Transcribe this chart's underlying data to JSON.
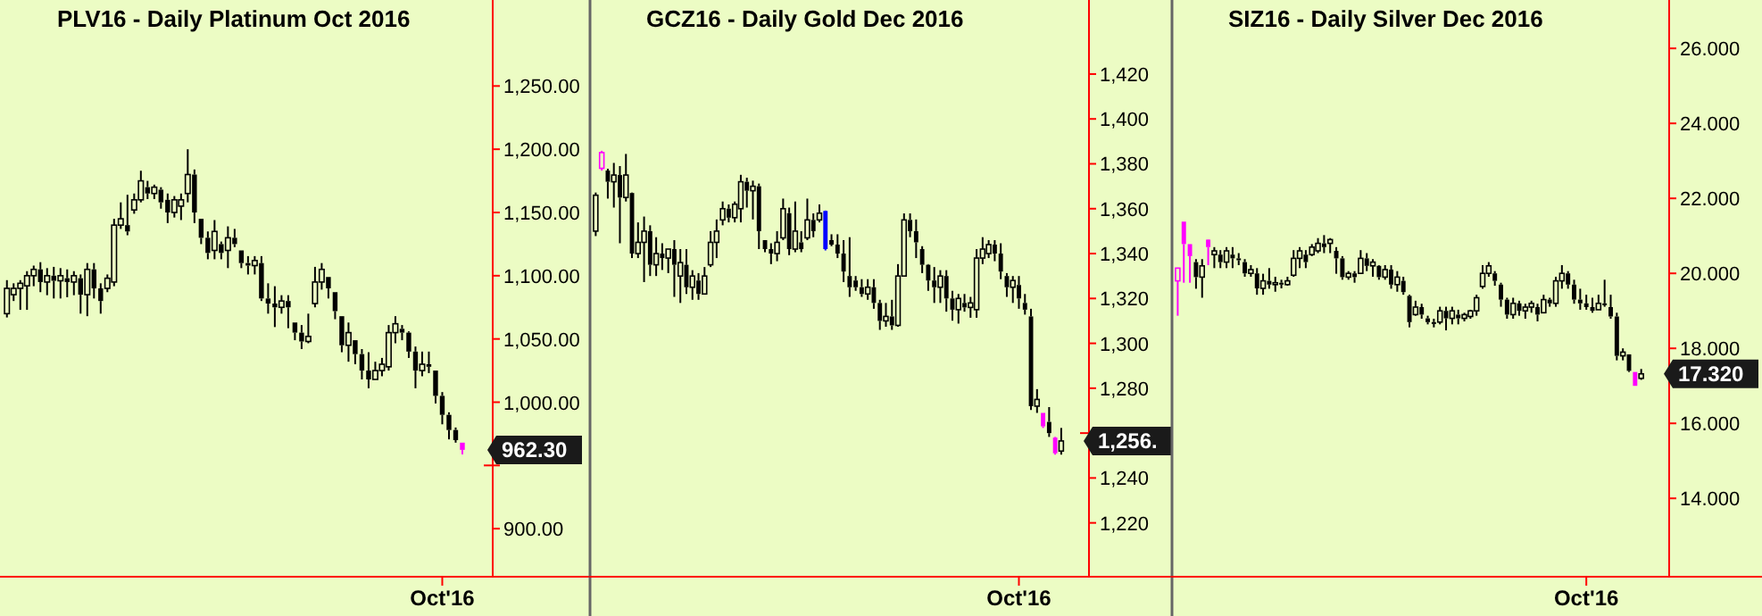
{
  "chart_data": [
    {
      "type": "candlestick",
      "title": "PLV16 - Daily  Platinum Oct 2016",
      "color": "#000000",
      "ylim": [
        862,
        1318
      ],
      "yticks": [
        {
          "value": 900,
          "label": "900.00"
        },
        {
          "value": 950,
          "label": null
        },
        {
          "value": 1000,
          "label": "1,000.00"
        },
        {
          "value": 1050,
          "label": "1,050.00"
        },
        {
          "value": 1100,
          "label": "1,100.00"
        },
        {
          "value": 1150,
          "label": "1,150.00"
        },
        {
          "value": 1200,
          "label": "1,200.00"
        },
        {
          "value": 1250,
          "label": "1,250.00"
        }
      ],
      "categories": [
        null,
        null,
        null,
        null,
        null,
        null,
        null,
        null,
        null,
        null,
        null,
        null,
        null,
        null,
        null,
        null,
        null,
        null,
        null,
        null,
        null,
        null,
        null,
        null,
        null,
        null,
        null,
        null,
        null,
        null,
        null,
        null,
        null,
        null,
        null,
        null,
        null,
        null,
        null,
        null,
        null,
        null,
        null,
        null,
        null,
        null,
        null,
        null,
        null,
        null,
        null,
        null,
        null,
        null,
        null,
        null,
        null,
        null,
        null,
        null,
        null,
        null,
        null,
        null,
        null,
        "Oct'16",
        null,
        null,
        null
      ],
      "ohlc": [
        [
          1070,
          1096.5,
          1067,
          1090
        ],
        [
          1085,
          1094,
          1080,
          1090
        ],
        [
          1090,
          1096.5,
          1073,
          1094
        ],
        [
          1092,
          1103.6,
          1073,
          1100
        ],
        [
          1100,
          1108,
          1091.7,
          1105
        ],
        [
          1105,
          1110.7,
          1087,
          1095
        ],
        [
          1095,
          1106,
          1084.6,
          1100
        ],
        [
          1100,
          1107,
          1082,
          1096
        ],
        [
          1096,
          1106,
          1082,
          1100
        ],
        [
          1098,
          1105,
          1083,
          1095
        ],
        [
          1095,
          1103.6,
          1084.6,
          1100
        ],
        [
          1098,
          1101,
          1070,
          1085
        ],
        [
          1085,
          1110,
          1068,
          1105
        ],
        [
          1105,
          1110,
          1082,
          1090
        ],
        [
          1090,
          1094,
          1070,
          1080
        ],
        [
          1090,
          1101,
          1087,
          1098
        ],
        [
          1095,
          1145,
          1091.7,
          1140
        ],
        [
          1140,
          1158,
          1137,
          1145
        ],
        [
          1140,
          1164,
          1132,
          1135
        ],
        [
          1152,
          1165,
          1149,
          1160
        ],
        [
          1160,
          1183,
          1158,
          1175
        ],
        [
          1170,
          1175,
          1160.6,
          1165
        ],
        [
          1165,
          1172,
          1160.6,
          1170
        ],
        [
          1168,
          1170,
          1153,
          1158
        ],
        [
          1160,
          1165,
          1141.6,
          1150
        ],
        [
          1150,
          1163,
          1146,
          1160
        ],
        [
          1155,
          1165,
          1144,
          1160
        ],
        [
          1165,
          1200,
          1158,
          1180
        ],
        [
          1180,
          1184,
          1141.6,
          1150
        ],
        [
          1145,
          1145,
          1125,
          1130
        ],
        [
          1130,
          1135,
          1113,
          1118
        ],
        [
          1120,
          1144,
          1113,
          1135
        ],
        [
          1125,
          1127,
          1113,
          1118
        ],
        [
          1120,
          1139,
          1106,
          1130
        ],
        [
          1130,
          1137,
          1122.6,
          1125
        ],
        [
          1120,
          1120,
          1106,
          1110
        ],
        [
          1110,
          1115.5,
          1101,
          1108
        ],
        [
          1108,
          1115.5,
          1101,
          1112
        ],
        [
          1110,
          1115.5,
          1080,
          1082
        ],
        [
          1082,
          1094,
          1070,
          1078
        ],
        [
          1078,
          1091.7,
          1059.4,
          1075
        ],
        [
          1075,
          1084.6,
          1070,
          1080
        ],
        [
          1080,
          1084.6,
          1058.5,
          1075
        ],
        [
          1063,
          1063,
          1049,
          1055
        ],
        [
          1055,
          1061,
          1042,
          1048
        ],
        [
          1048,
          1070,
          1046.6,
          1052
        ],
        [
          1078,
          1107,
          1075,
          1095
        ],
        [
          1095,
          1110,
          1089,
          1105
        ],
        [
          1099,
          1099,
          1082,
          1090
        ],
        [
          1087,
          1087,
          1065.6,
          1072
        ],
        [
          1068,
          1068,
          1039.5,
          1045
        ],
        [
          1045,
          1063,
          1032,
          1055
        ],
        [
          1049,
          1049,
          1030,
          1038
        ],
        [
          1038,
          1042,
          1018,
          1025
        ],
        [
          1025,
          1039.5,
          1011,
          1018
        ],
        [
          1018,
          1032,
          1018,
          1025
        ],
        [
          1025,
          1035,
          1020.5,
          1030
        ],
        [
          1028,
          1061,
          1025,
          1055
        ],
        [
          1055,
          1068,
          1046.6,
          1062
        ],
        [
          1058,
          1061,
          1049,
          1055
        ],
        [
          1055,
          1056,
          1035,
          1040
        ],
        [
          1040,
          1044,
          1011,
          1025
        ],
        [
          1025,
          1040,
          1020.5,
          1030
        ],
        [
          1030,
          1040,
          1023,
          1028
        ],
        [
          1025,
          1025,
          999,
          1005
        ],
        [
          1005,
          1008,
          982.5,
          990
        ],
        [
          990,
          992,
          970.6,
          978
        ],
        [
          978,
          980,
          968,
          970
        ],
        [
          968,
          968,
          958.7,
          962.3
        ]
      ],
      "colors": [
        "#000000",
        "#000000",
        "#000000",
        "#000000",
        "#000000",
        "#000000",
        "#000000",
        "#000000",
        "#000000",
        "#000000",
        "#000000",
        "#000000",
        "#000000",
        "#000000",
        "#000000",
        "#000000",
        "#000000",
        "#000000",
        "#000000",
        "#000000",
        "#000000",
        "#000000",
        "#000000",
        "#000000",
        "#000000",
        "#000000",
        "#000000",
        "#000000",
        "#000000",
        "#000000",
        "#000000",
        "#000000",
        "#000000",
        "#000000",
        "#000000",
        "#000000",
        "#000000",
        "#000000",
        "#000000",
        "#000000",
        "#000000",
        "#000000",
        "#000000",
        "#000000",
        "#000000",
        "#000000",
        "#000000",
        "#000000",
        "#000000",
        "#000000",
        "#000000",
        "#000000",
        "#000000",
        "#000000",
        "#000000",
        "#000000",
        "#000000",
        "#000000",
        "#000000",
        "#000000",
        "#000000",
        "#000000",
        "#000000",
        "#000000",
        "#000000",
        "#000000",
        "#000000",
        "#000000",
        "#ff00ff"
      ],
      "annotations": [
        "962.30"
      ]
    },
    {
      "type": "candlestick",
      "title": "GCZ16 - Daily  Gold Dec 2016",
      "color": "#000000",
      "ylim": [
        1196,
        1453
      ],
      "yticks": [
        {
          "value": 1220,
          "label": "1,220"
        },
        {
          "value": 1240,
          "label": "1,240"
        },
        {
          "value": 1260,
          "label": null
        },
        {
          "value": 1280,
          "label": "1,280"
        },
        {
          "value": 1300,
          "label": "1,300"
        },
        {
          "value": 1320,
          "label": "1,320"
        },
        {
          "value": 1340,
          "label": "1,340"
        },
        {
          "value": 1360,
          "label": "1,360"
        },
        {
          "value": 1380,
          "label": "1,380"
        },
        {
          "value": 1400,
          "label": "1,400"
        },
        {
          "value": 1420,
          "label": "1,420"
        }
      ],
      "categories": [
        null,
        null,
        null,
        null,
        null,
        null,
        null,
        null,
        null,
        null,
        null,
        null,
        null,
        null,
        null,
        null,
        null,
        null,
        null,
        null,
        null,
        null,
        null,
        null,
        null,
        null,
        null,
        null,
        null,
        null,
        null,
        null,
        null,
        null,
        null,
        null,
        null,
        null,
        null,
        null,
        null,
        null,
        null,
        null,
        null,
        null,
        null,
        null,
        null,
        null,
        null,
        null,
        null,
        null,
        null,
        null,
        null,
        null,
        null,
        null,
        null,
        null,
        null,
        null,
        null,
        null,
        null,
        null,
        null,
        null,
        "Oct'16",
        null,
        null,
        null,
        null,
        null,
        null,
        null
      ],
      "ohlc": [
        [
          1350,
          1367.2,
          1347.8,
          1366
        ],
        [
          1378,
          1385.8,
          1377,
          1385
        ],
        [
          1377,
          1377.8,
          1364.5,
          1372
        ],
        [
          1372,
          1380.4,
          1360.5,
          1375
        ],
        [
          1375,
          1379,
          1344.6,
          1365
        ],
        [
          1365,
          1384.4,
          1363.2,
          1375
        ],
        [
          1367,
          1367.2,
          1338,
          1340
        ],
        [
          1340,
          1353.9,
          1338,
          1345
        ],
        [
          1345,
          1356.5,
          1327.3,
          1350
        ],
        [
          1350,
          1352.6,
          1330,
          1335
        ],
        [
          1335,
          1347.3,
          1330,
          1340
        ],
        [
          1340,
          1344.6,
          1332.7,
          1338
        ],
        [
          1338,
          1342,
          1331.3,
          1342
        ],
        [
          1342,
          1346,
          1320.7,
          1335
        ],
        [
          1330,
          1342,
          1318,
          1336
        ],
        [
          1335,
          1342,
          1322,
          1325
        ],
        [
          1325,
          1332.6,
          1319.4,
          1330
        ],
        [
          1328,
          1331.3,
          1319.4,
          1322
        ],
        [
          1322,
          1334,
          1322,
          1330
        ],
        [
          1335,
          1350,
          1334,
          1345
        ],
        [
          1345,
          1355.2,
          1338,
          1350
        ],
        [
          1355,
          1363.2,
          1352.6,
          1360
        ],
        [
          1360,
          1361.9,
          1353.9,
          1356
        ],
        [
          1356,
          1363.2,
          1353.9,
          1362
        ],
        [
          1360,
          1375.1,
          1353.9,
          1372
        ],
        [
          1372,
          1373.8,
          1360.5,
          1368
        ],
        [
          1368,
          1372.5,
          1355.2,
          1370
        ],
        [
          1370,
          1371.2,
          1342,
          1350
        ],
        [
          1346,
          1346,
          1340.6,
          1342
        ],
        [
          1342,
          1344.6,
          1335.3,
          1340
        ],
        [
          1340,
          1350,
          1336.6,
          1345
        ],
        [
          1347,
          1364.5,
          1346,
          1360
        ],
        [
          1358,
          1360.5,
          1339.3,
          1342
        ],
        [
          1342,
          1363.2,
          1340.6,
          1350
        ],
        [
          1345,
          1350,
          1340.6,
          1342
        ],
        [
          1347,
          1364.5,
          1346,
          1355
        ],
        [
          1355,
          1357.9,
          1347.3,
          1350
        ],
        [
          1355,
          1361.9,
          1353.9,
          1358
        ],
        [
          1359,
          1359.2,
          1341.4,
          1342
        ],
        [
          1346,
          1348.6,
          1343.3,
          1344
        ],
        [
          1344,
          1348.6,
          1338,
          1340
        ],
        [
          1340,
          1346,
          1327.3,
          1332
        ],
        [
          1330,
          1347.3,
          1320.7,
          1325
        ],
        [
          1328,
          1330,
          1323.4,
          1325
        ],
        [
          1325,
          1328.6,
          1320.7,
          1322
        ],
        [
          1322,
          1328.6,
          1319.4,
          1325
        ],
        [
          1325,
          1328.6,
          1315.4,
          1318
        ],
        [
          1318,
          1319.4,
          1306,
          1310
        ],
        [
          1310,
          1318,
          1307.4,
          1312
        ],
        [
          1312,
          1319.4,
          1306,
          1308
        ],
        [
          1308,
          1335.3,
          1307.4,
          1330
        ],
        [
          1330,
          1357.9,
          1330,
          1355
        ],
        [
          1355,
          1357.9,
          1347.3,
          1350
        ],
        [
          1350,
          1355.2,
          1338,
          1345
        ],
        [
          1342,
          1343.3,
          1331.3,
          1335
        ],
        [
          1335,
          1335.3,
          1323.4,
          1328
        ],
        [
          1328,
          1334,
          1318,
          1325
        ],
        [
          1325,
          1332.6,
          1318,
          1330
        ],
        [
          1330,
          1332.6,
          1314.1,
          1320
        ],
        [
          1320,
          1323.4,
          1310.1,
          1315
        ],
        [
          1315,
          1322,
          1308.8,
          1320
        ],
        [
          1318,
          1322,
          1314.1,
          1316
        ],
        [
          1316,
          1320.7,
          1311.4,
          1318
        ],
        [
          1315,
          1342,
          1311.4,
          1338
        ],
        [
          1338,
          1347.3,
          1335.3,
          1342
        ],
        [
          1340,
          1346,
          1338,
          1344
        ],
        [
          1344,
          1346,
          1336.6,
          1340
        ],
        [
          1340,
          1344.6,
          1328.6,
          1332
        ],
        [
          1330,
          1331.3,
          1320.7,
          1325
        ],
        [
          1325,
          1330,
          1318,
          1328
        ],
        [
          1326,
          1330,
          1315.4,
          1320
        ],
        [
          1318,
          1322,
          1312.8,
          1315
        ],
        [
          1312,
          1315.4,
          1270.3,
          1272
        ],
        [
          1272,
          1279.6,
          1269,
          1275
        ],
        [
          1269,
          1269,
          1262.3,
          1263
        ],
        [
          1265,
          1271.6,
          1258.3,
          1260
        ],
        [
          1258,
          1258.3,
          1250.4,
          1251
        ],
        [
          1252,
          1262.3,
          1250.4,
          1256.5
        ]
      ],
      "colors": [
        "#000000",
        "#ff00ff",
        "#000000",
        "#000000",
        "#000000",
        "#000000",
        "#000000",
        "#000000",
        "#000000",
        "#000000",
        "#000000",
        "#000000",
        "#000000",
        "#000000",
        "#000000",
        "#000000",
        "#000000",
        "#000000",
        "#000000",
        "#000000",
        "#000000",
        "#000000",
        "#000000",
        "#000000",
        "#000000",
        "#000000",
        "#000000",
        "#000000",
        "#000000",
        "#000000",
        "#000000",
        "#000000",
        "#000000",
        "#000000",
        "#000000",
        "#000000",
        "#000000",
        "#000000",
        "#0000ff",
        "#000000",
        "#000000",
        "#000000",
        "#000000",
        "#000000",
        "#000000",
        "#000000",
        "#000000",
        "#000000",
        "#000000",
        "#000000",
        "#000000",
        "#000000",
        "#000000",
        "#000000",
        "#000000",
        "#000000",
        "#000000",
        "#000000",
        "#000000",
        "#000000",
        "#000000",
        "#000000",
        "#000000",
        "#000000",
        "#000000",
        "#000000",
        "#000000",
        "#000000",
        "#000000",
        "#000000",
        "#000000",
        "#000000",
        "#000000",
        "#000000",
        "#ff00ff",
        "#000000",
        "#ff00ff",
        "#000000"
      ],
      "annotations": [
        "1,256."
      ]
    },
    {
      "type": "candlestick",
      "title": "SIZ16 - Daily  Silver Dec 2016",
      "color": "#000000",
      "ylim": [
        11.91,
        27.29
      ],
      "yticks": [
        {
          "value": 14,
          "label": "14.000"
        },
        {
          "value": 16,
          "label": "16.000"
        },
        {
          "value": 18,
          "label": "18.000"
        },
        {
          "value": 20,
          "label": "20.000"
        },
        {
          "value": 22,
          "label": "22.000"
        },
        {
          "value": 24,
          "label": "24.000"
        },
        {
          "value": 26,
          "label": "26.000"
        }
      ],
      "categories": [
        null,
        null,
        null,
        null,
        null,
        null,
        null,
        null,
        null,
        null,
        null,
        null,
        null,
        null,
        null,
        null,
        null,
        null,
        null,
        null,
        null,
        null,
        null,
        null,
        null,
        null,
        null,
        null,
        null,
        null,
        null,
        null,
        null,
        null,
        null,
        null,
        null,
        null,
        null,
        null,
        null,
        null,
        null,
        null,
        null,
        null,
        null,
        null,
        null,
        null,
        null,
        null,
        null,
        null,
        null,
        null,
        null,
        null,
        null,
        null,
        null,
        null,
        null,
        null,
        null,
        null,
        null,
        "Oct'16",
        null,
        null,
        null,
        null,
        null,
        null,
        null,
        null,
        null
      ],
      "ohlc": [
        [
          19.8,
          20.14,
          18.87,
          20.14
        ],
        [
          21.38,
          21.38,
          19.75,
          20.78
        ],
        [
          20.78,
          20.78,
          19.75,
          20.46
        ],
        [
          20.3,
          20.38,
          19.59,
          19.9
        ],
        [
          19.9,
          20.38,
          19.35,
          20.2
        ],
        [
          20.9,
          20.91,
          20.22,
          20.7
        ],
        [
          20.5,
          20.7,
          20.14,
          20.6
        ],
        [
          20.5,
          20.62,
          20.14,
          20.3
        ],
        [
          20.3,
          20.7,
          20.14,
          20.6
        ],
        [
          20.5,
          20.7,
          20.14,
          20.4
        ],
        [
          20.4,
          20.54,
          20.22,
          20.35
        ],
        [
          20.3,
          20.38,
          19.91,
          20.0
        ],
        [
          20.0,
          20.22,
          19.91,
          20.1
        ],
        [
          20.0,
          20.14,
          19.43,
          19.6
        ],
        [
          19.6,
          19.99,
          19.43,
          19.8
        ],
        [
          19.8,
          20.14,
          19.59,
          19.7
        ],
        [
          19.7,
          19.91,
          19.51,
          19.75
        ],
        [
          19.75,
          19.83,
          19.6,
          19.7
        ],
        [
          19.7,
          19.91,
          19.67,
          19.8
        ],
        [
          19.95,
          20.62,
          19.91,
          20.4
        ],
        [
          20.4,
          20.7,
          20.14,
          20.6
        ],
        [
          20.5,
          20.62,
          20.14,
          20.3
        ],
        [
          20.5,
          20.78,
          20.46,
          20.7
        ],
        [
          20.6,
          20.94,
          20.54,
          20.8
        ],
        [
          20.8,
          21.02,
          20.54,
          20.7
        ],
        [
          20.8,
          20.94,
          20.54,
          20.9
        ],
        [
          20.6,
          20.7,
          19.99,
          20.4
        ],
        [
          20.4,
          20.46,
          19.83,
          19.9
        ],
        [
          19.9,
          20.06,
          19.83,
          20.0
        ],
        [
          20.0,
          20.06,
          19.75,
          19.9
        ],
        [
          20.0,
          20.62,
          19.99,
          20.4
        ],
        [
          20.4,
          20.54,
          20.06,
          20.2
        ],
        [
          20.2,
          20.38,
          19.91,
          20.3
        ],
        [
          20.2,
          20.22,
          19.83,
          19.9
        ],
        [
          19.9,
          20.22,
          19.83,
          20.1
        ],
        [
          20.1,
          20.22,
          19.59,
          19.7
        ],
        [
          19.7,
          20.06,
          19.51,
          19.9
        ],
        [
          19.8,
          19.91,
          19.43,
          19.5
        ],
        [
          19.4,
          19.43,
          18.56,
          18.7
        ],
        [
          18.9,
          19.27,
          18.87,
          19.1
        ],
        [
          19.1,
          19.19,
          18.79,
          18.9
        ],
        [
          18.8,
          18.87,
          18.64,
          18.7
        ],
        [
          18.7,
          18.79,
          18.56,
          18.65
        ],
        [
          18.7,
          19.11,
          18.64,
          19.0
        ],
        [
          19.0,
          19.11,
          18.48,
          18.8
        ],
        [
          18.8,
          19.11,
          18.64,
          19.0
        ],
        [
          18.9,
          19.03,
          18.64,
          18.8
        ],
        [
          18.8,
          18.95,
          18.72,
          18.9
        ],
        [
          18.85,
          19.03,
          18.79,
          19.0
        ],
        [
          19.0,
          19.43,
          18.87,
          19.35
        ],
        [
          19.65,
          20.22,
          19.59,
          20.0
        ],
        [
          20.0,
          20.3,
          19.91,
          20.2
        ],
        [
          20.0,
          20.06,
          19.67,
          19.8
        ],
        [
          19.7,
          19.75,
          19.11,
          19.3
        ],
        [
          19.3,
          19.35,
          18.79,
          18.9
        ],
        [
          18.9,
          19.35,
          18.79,
          19.2
        ],
        [
          19.2,
          19.27,
          18.87,
          19.0
        ],
        [
          19.0,
          19.19,
          18.79,
          19.1
        ],
        [
          19.1,
          19.27,
          18.95,
          19.2
        ],
        [
          19.1,
          19.19,
          18.72,
          18.9
        ],
        [
          18.95,
          19.43,
          18.95,
          19.3
        ],
        [
          19.3,
          19.35,
          19.11,
          19.2
        ],
        [
          19.2,
          19.91,
          19.11,
          19.8
        ],
        [
          19.8,
          20.22,
          19.59,
          20.0
        ],
        [
          20.0,
          20.06,
          19.59,
          19.7
        ],
        [
          19.7,
          19.83,
          19.19,
          19.3
        ],
        [
          19.3,
          19.59,
          19.03,
          19.2
        ],
        [
          19.2,
          19.43,
          19.03,
          19.1
        ],
        [
          19.1,
          19.35,
          18.95,
          19.0
        ],
        [
          19.03,
          19.43,
          19.03,
          19.2
        ],
        [
          19.2,
          19.83,
          19.11,
          19.15
        ],
        [
          19.1,
          19.43,
          18.79,
          18.85
        ],
        [
          18.85,
          18.95,
          17.68,
          17.8
        ],
        [
          17.8,
          18.0,
          17.68,
          17.9
        ],
        [
          17.84,
          17.84,
          17.37,
          17.4
        ],
        [
          17.37,
          17.37,
          17.0,
          17.0
        ],
        [
          17.2,
          17.45,
          17.16,
          17.32
        ]
      ],
      "colors": [
        "#ff00ff",
        "#ff00ff",
        "#ff00ff",
        "#000000",
        "#000000",
        "#ff00ff",
        "#000000",
        "#000000",
        "#000000",
        "#000000",
        "#000000",
        "#000000",
        "#000000",
        "#000000",
        "#000000",
        "#000000",
        "#000000",
        "#000000",
        "#000000",
        "#000000",
        "#000000",
        "#000000",
        "#000000",
        "#000000",
        "#000000",
        "#000000",
        "#000000",
        "#000000",
        "#000000",
        "#000000",
        "#000000",
        "#000000",
        "#000000",
        "#000000",
        "#000000",
        "#000000",
        "#000000",
        "#000000",
        "#000000",
        "#000000",
        "#000000",
        "#000000",
        "#000000",
        "#000000",
        "#000000",
        "#000000",
        "#000000",
        "#000000",
        "#000000",
        "#000000",
        "#000000",
        "#000000",
        "#000000",
        "#000000",
        "#000000",
        "#000000",
        "#000000",
        "#000000",
        "#000000",
        "#000000",
        "#000000",
        "#000000",
        "#000000",
        "#000000",
        "#000000",
        "#000000",
        "#000000",
        "#000000",
        "#000000",
        "#000000",
        "#000000",
        "#000000",
        "#000000",
        "#000000",
        "#000000",
        "#ff00ff",
        "#000000"
      ],
      "annotations": [
        "17.320"
      ]
    }
  ]
}
